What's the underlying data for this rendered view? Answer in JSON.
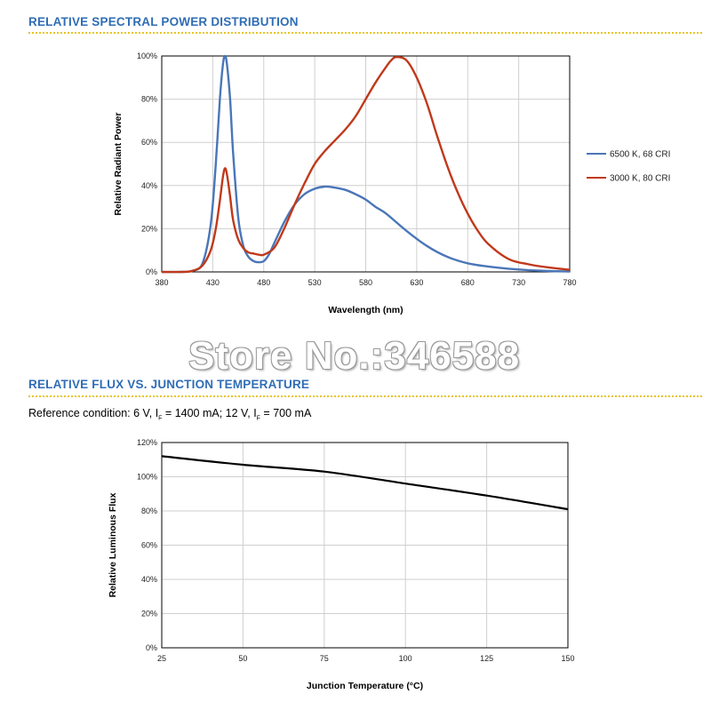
{
  "sections": {
    "spectral_title": "RELATIVE SPECTRAL POWER DISTRIBUTION",
    "flux_title": "RELATIVE FLUX VS. JUNCTION TEMPERATURE",
    "reference": {
      "prefix": "Reference condition: 6 V, I",
      "sub1": "F",
      "mid": " = 1400 mA; 12 V, I",
      "sub2": "F",
      "suffix": " = 700 mA"
    }
  },
  "watermark": "Store No.:346588",
  "colors": {
    "title": "#2f6db5",
    "divider": "#e8c428",
    "series_6500k": "#4a76b8",
    "series_3000k": "#c0391b",
    "flux_line": "#000000"
  },
  "chart_data": [
    {
      "type": "line",
      "xlabel": "Wavelength (nm)",
      "ylabel": "Relative Radiant Power",
      "xlim": [
        380,
        780
      ],
      "ylim": [
        0,
        100
      ],
      "xticks": [
        380,
        430,
        480,
        530,
        580,
        630,
        680,
        730,
        780
      ],
      "yticks": [
        0,
        20,
        40,
        60,
        80,
        100
      ],
      "yticks_format": "percent",
      "grid": true,
      "legend": "right",
      "series": [
        {
          "name": "6500 K, 68 CRI",
          "color": "#4a76b8",
          "x": [
            380,
            400,
            410,
            420,
            428,
            433,
            437,
            440,
            442,
            444,
            447,
            450,
            455,
            460,
            465,
            470,
            475,
            480,
            485,
            490,
            500,
            510,
            520,
            530,
            540,
            550,
            560,
            570,
            580,
            590,
            600,
            620,
            640,
            660,
            680,
            700,
            720,
            740,
            760,
            780
          ],
          "y": [
            0,
            0,
            0.5,
            4,
            22,
            50,
            80,
            96,
            100,
            96,
            80,
            55,
            25,
            12,
            7,
            5,
            4.5,
            5,
            8,
            13,
            23,
            31,
            36,
            38.5,
            39.5,
            39,
            38,
            36,
            33.5,
            30,
            27,
            19,
            12,
            7,
            4,
            2.5,
            1.5,
            0.8,
            0.4,
            0.2
          ]
        },
        {
          "name": "3000 K, 80 CRI",
          "color": "#c0391b",
          "x": [
            380,
            400,
            410,
            420,
            428,
            433,
            437,
            440,
            442,
            444,
            447,
            450,
            455,
            460,
            465,
            470,
            475,
            480,
            490,
            500,
            510,
            520,
            530,
            540,
            550,
            560,
            570,
            580,
            590,
            600,
            605,
            610,
            620,
            630,
            640,
            650,
            660,
            670,
            680,
            690,
            700,
            720,
            740,
            760,
            780
          ],
          "y": [
            0,
            0,
            0.5,
            3,
            10,
            20,
            33,
            44,
            48,
            45,
            35,
            24,
            15,
            11,
            9,
            8.5,
            8,
            8,
            11,
            20,
            31,
            41,
            50,
            56,
            61,
            66,
            72,
            80,
            88,
            95,
            98,
            99.5,
            98,
            90,
            78,
            63,
            49,
            37,
            27,
            19,
            13,
            6,
            3.5,
            2,
            1
          ]
        }
      ]
    },
    {
      "type": "line",
      "xlabel": "Junction Temperature (°C)",
      "ylabel": "Relative Luminous Flux",
      "xlim": [
        25,
        150
      ],
      "ylim": [
        0,
        120
      ],
      "xticks": [
        25,
        50,
        75,
        100,
        125,
        150
      ],
      "yticks": [
        0,
        20,
        40,
        60,
        80,
        100,
        120
      ],
      "yticks_format": "percent",
      "grid": true,
      "series": [
        {
          "color": "#000000",
          "x": [
            25,
            50,
            75,
            100,
            125,
            150
          ],
          "y": [
            112,
            107,
            103,
            96,
            89,
            81
          ]
        }
      ]
    }
  ]
}
